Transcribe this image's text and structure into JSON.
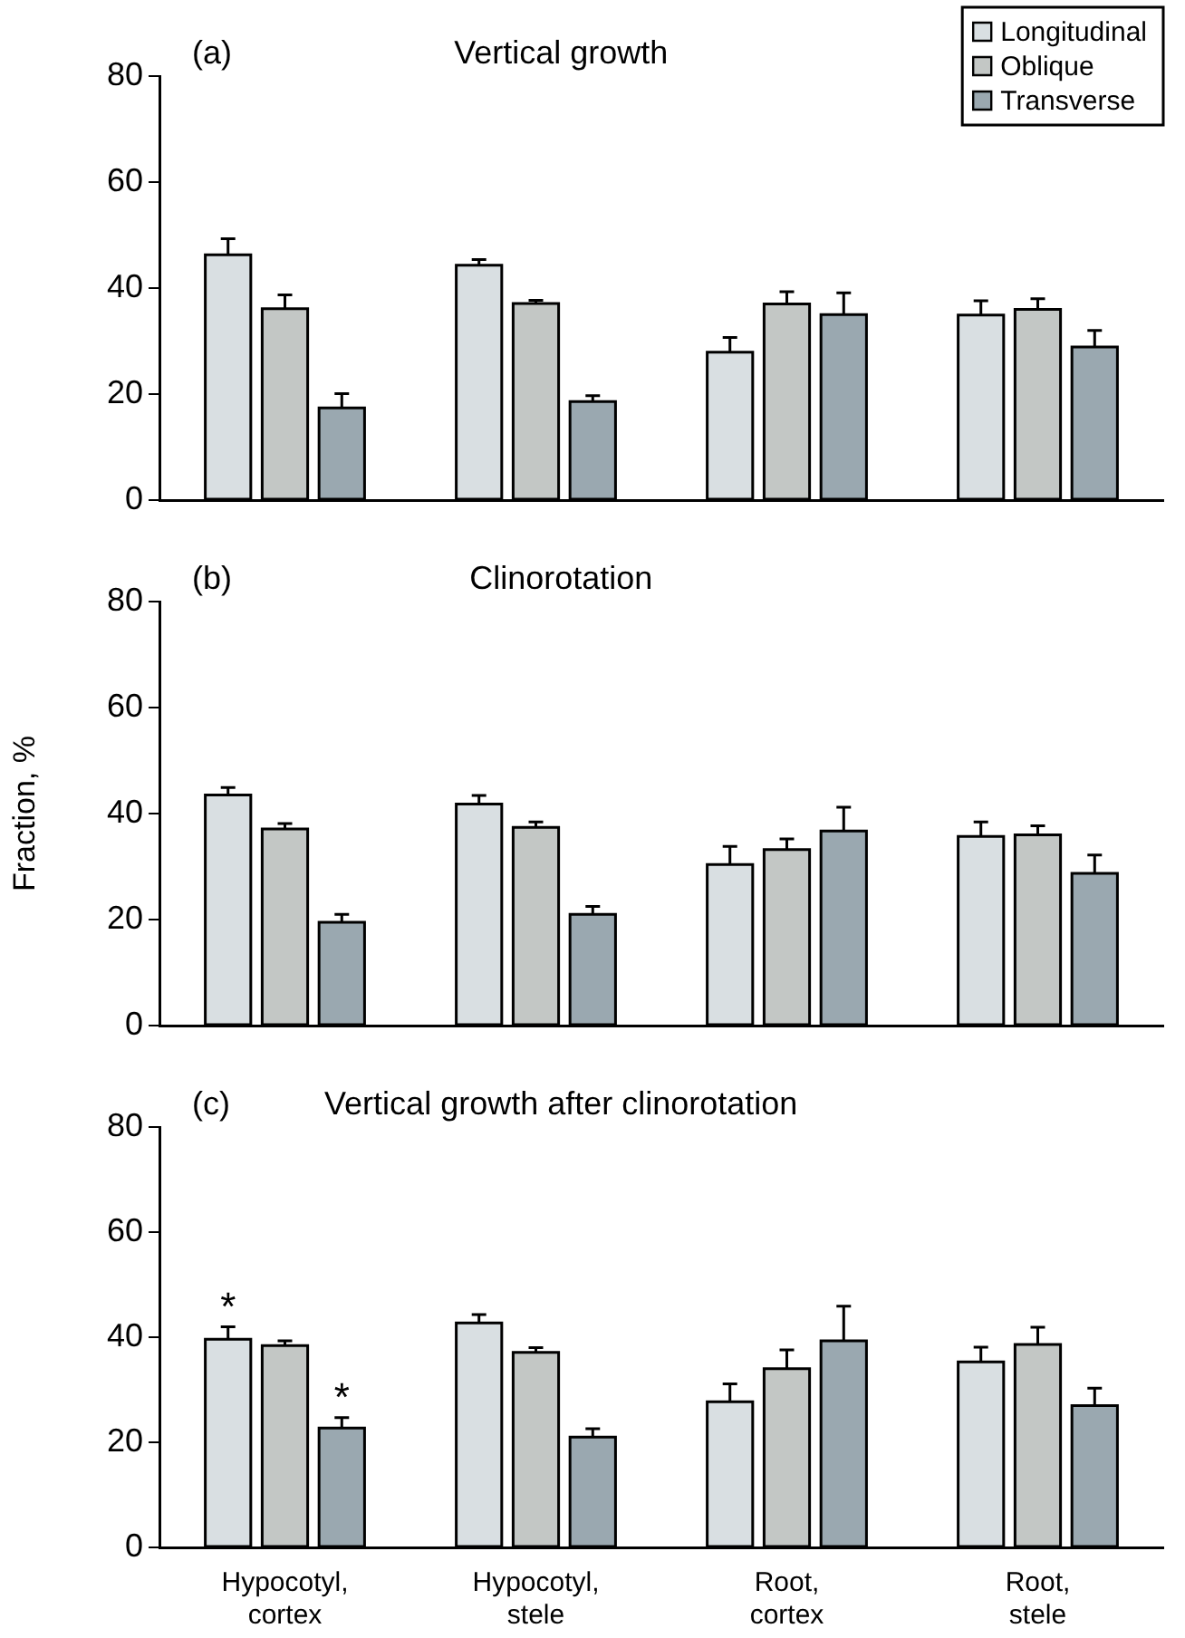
{
  "chart_data": [
    {
      "type": "bar",
      "title": "Vertical growth",
      "annotations": [
        "(a)"
      ],
      "categories": [
        null,
        null,
        null,
        null
      ],
      "series": [
        {
          "name": "Longitudinal",
          "color": "#d9dfe2",
          "values": [
            46.3,
            44.3,
            27.9,
            34.9
          ],
          "errors": [
            [
              46.3,
              49.3
            ],
            [
              44.3,
              45.4
            ],
            [
              27.9,
              30.7
            ],
            [
              34.9,
              37.6
            ]
          ]
        },
        {
          "name": "Oblique",
          "color": "#c3c7c5",
          "values": [
            36.1,
            37.1,
            37.0,
            36.0
          ],
          "errors": [
            [
              36.1,
              38.7
            ],
            [
              37.1,
              37.7
            ],
            [
              37.0,
              39.3
            ],
            [
              36.0,
              38.0
            ]
          ]
        },
        {
          "name": "Transverse",
          "color": "#9aa8b0",
          "values": [
            17.4,
            18.6,
            35.0,
            28.9
          ],
          "errors": [
            [
              17.4,
              20.1
            ],
            [
              18.6,
              19.7
            ],
            [
              35.0,
              39.1
            ],
            [
              28.9,
              32.0
            ]
          ]
        }
      ],
      "ylim": [
        0,
        80
      ],
      "yticks": [
        0,
        20,
        40,
        60,
        80
      ],
      "grid": false,
      "legend": "top right",
      "tick_labels": "y"
    },
    {
      "type": "bar",
      "title": "Clinorotation",
      "annotations": [
        "(b)"
      ],
      "ylabel": "Fraction, %",
      "categories": [
        null,
        null,
        null,
        null
      ],
      "series": [
        {
          "color": "#d9dfe2",
          "values": [
            43.5,
            41.8,
            30.4,
            35.7
          ],
          "errors": [
            [
              43.5,
              44.9
            ],
            [
              41.8,
              43.4
            ],
            [
              30.4,
              33.8
            ],
            [
              35.7,
              38.4
            ]
          ]
        },
        {
          "color": "#c3c7c5",
          "values": [
            37.1,
            37.4,
            33.2,
            36.0
          ],
          "errors": [
            [
              37.1,
              38.1
            ],
            [
              37.4,
              38.4
            ],
            [
              33.2,
              35.2
            ],
            [
              36.0,
              37.7
            ]
          ]
        },
        {
          "color": "#9aa8b0",
          "values": [
            19.5,
            21.0,
            36.7,
            28.7
          ],
          "errors": [
            [
              19.5,
              21.0
            ],
            [
              21.0,
              22.5
            ],
            [
              36.7,
              41.2
            ],
            [
              28.7,
              32.2
            ]
          ]
        }
      ],
      "ylim": [
        0,
        80
      ],
      "yticks": [
        0,
        20,
        40,
        60,
        80
      ],
      "grid": false,
      "legend": false,
      "tick_labels": "y"
    },
    {
      "type": "bar",
      "title": "Vertical growth after clinorotation",
      "annotations": [
        "(c)",
        "*",
        "*"
      ],
      "categories": [
        "Hypocotyl, cortex",
        "Hypocotyl, stele",
        "Root, cortex",
        "Root, stele"
      ],
      "series": [
        {
          "color": "#d9dfe2",
          "values": [
            39.6,
            42.7,
            27.7,
            35.3
          ],
          "errors": [
            [
              39.6,
              42.0
            ],
            [
              42.7,
              44.3
            ],
            [
              27.7,
              31.1
            ],
            [
              35.3,
              38.1
            ]
          ]
        },
        {
          "color": "#c3c7c5",
          "values": [
            38.4,
            37.1,
            34.0,
            38.6
          ],
          "errors": [
            [
              38.4,
              39.3
            ],
            [
              37.1,
              38.0
            ],
            [
              34.0,
              37.6
            ],
            [
              38.6,
              41.9
            ]
          ]
        },
        {
          "color": "#9aa8b0",
          "values": [
            22.7,
            21.0,
            39.3,
            27.0
          ],
          "errors": [
            [
              22.7,
              24.7
            ],
            [
              21.0,
              22.6
            ],
            [
              39.3,
              45.9
            ],
            [
              27.0,
              30.3
            ]
          ]
        }
      ],
      "ylim": [
        0,
        80
      ],
      "yticks": [
        0,
        20,
        40,
        60,
        80
      ],
      "grid": false,
      "legend": false
    }
  ]
}
